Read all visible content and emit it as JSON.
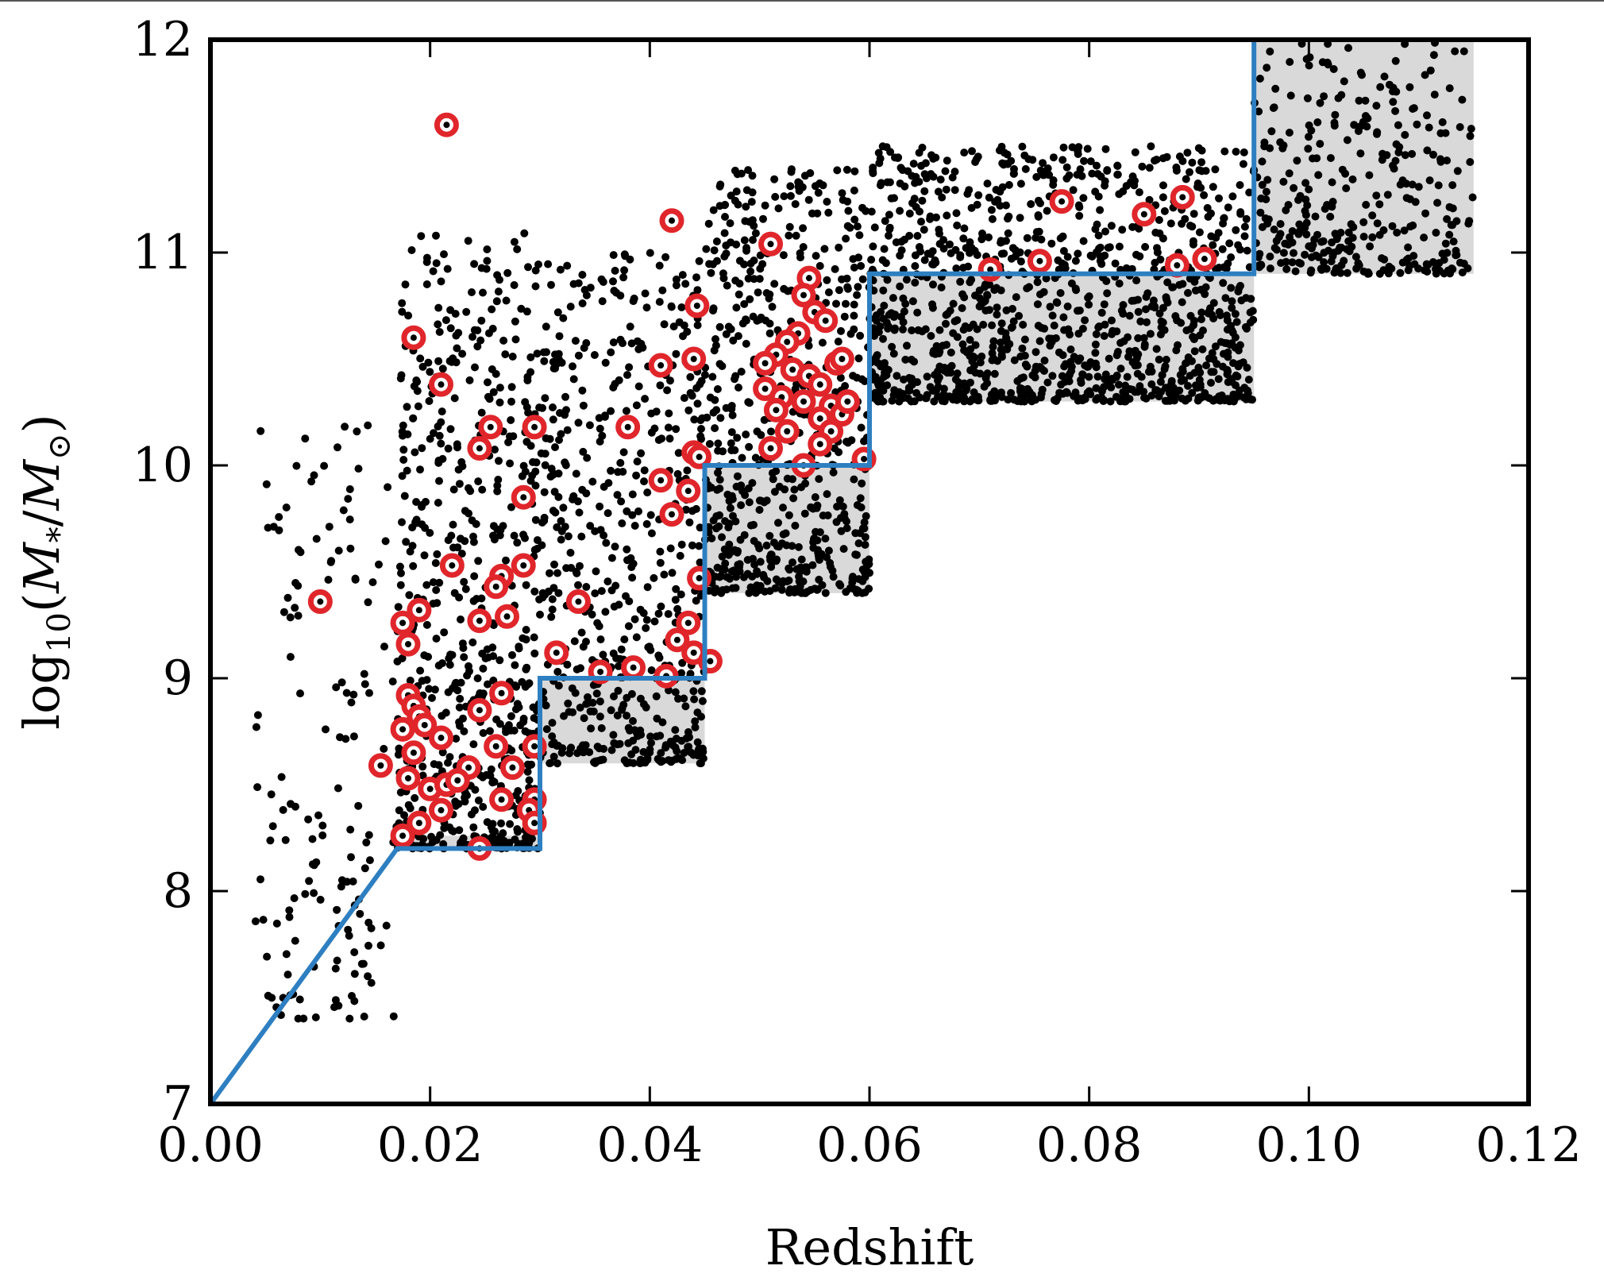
{
  "chart_data": {
    "type": "scatter",
    "title": "",
    "xlabel": "Redshift",
    "ylabel": "log10(M*/M⊙)",
    "xlim": [
      0.0,
      0.12
    ],
    "ylim": [
      7,
      12
    ],
    "grid": false,
    "x_ticks": [
      "0.00",
      "0.02",
      "0.04",
      "0.06",
      "0.08",
      "0.10",
      "0.12"
    ],
    "y_ticks": [
      "7",
      "8",
      "9",
      "10",
      "11",
      "12"
    ],
    "colors": {
      "points": "#000000",
      "highlight": "#e0262b",
      "limit_line": "#2e7fc1",
      "shaded_bins": "#d9d9d9"
    },
    "shaded_bins": [
      {
        "z": [
          0.017,
          0.03
        ],
        "m": [
          8.2,
          8.26
        ]
      },
      {
        "z": [
          0.03,
          0.045
        ],
        "m": [
          8.6,
          9.0
        ]
      },
      {
        "z": [
          0.045,
          0.06
        ],
        "m": [
          9.4,
          10.0
        ]
      },
      {
        "z": [
          0.06,
          0.095
        ],
        "m": [
          10.3,
          10.9
        ]
      },
      {
        "z": [
          0.095,
          0.115
        ],
        "m": [
          10.9,
          12.0
        ]
      }
    ],
    "limit_line": [
      [
        0.0,
        7.0
      ],
      [
        0.017,
        8.2
      ],
      [
        0.03,
        8.2
      ],
      [
        0.03,
        9.0
      ],
      [
        0.045,
        9.0
      ],
      [
        0.045,
        10.0
      ],
      [
        0.06,
        10.0
      ],
      [
        0.06,
        10.9
      ],
      [
        0.095,
        10.9
      ],
      [
        0.095,
        12.0
      ]
    ],
    "point_clouds": [
      {
        "z": [
          0.004,
          0.017
        ],
        "m": [
          7.4,
          10.2
        ],
        "n": 150
      },
      {
        "z": [
          0.017,
          0.03
        ],
        "m": [
          8.2,
          11.1
        ],
        "n": 650
      },
      {
        "z": [
          0.03,
          0.045
        ],
        "m": [
          8.6,
          11.0
        ],
        "n": 560
      },
      {
        "z": [
          0.045,
          0.06
        ],
        "m": [
          9.4,
          11.4
        ],
        "n": 620
      },
      {
        "z": [
          0.06,
          0.095
        ],
        "m": [
          10.3,
          11.5
        ],
        "n": 1150
      },
      {
        "z": [
          0.095,
          0.115
        ],
        "m": [
          10.9,
          12.0
        ],
        "n": 330
      }
    ],
    "highlighted_points": [
      [
        0.0215,
        11.6
      ],
      [
        0.0185,
        10.6
      ],
      [
        0.021,
        10.38
      ],
      [
        0.0255,
        10.18
      ],
      [
        0.0245,
        10.08
      ],
      [
        0.0295,
        10.18
      ],
      [
        0.0285,
        9.85
      ],
      [
        0.022,
        9.53
      ],
      [
        0.0285,
        9.53
      ],
      [
        0.0265,
        9.48
      ],
      [
        0.026,
        9.43
      ],
      [
        0.0245,
        9.27
      ],
      [
        0.027,
        9.29
      ],
      [
        0.0175,
        9.26
      ],
      [
        0.019,
        9.32
      ],
      [
        0.018,
        9.16
      ],
      [
        0.01,
        9.36
      ],
      [
        0.0265,
        8.93
      ],
      [
        0.0245,
        8.85
      ],
      [
        0.018,
        8.92
      ],
      [
        0.0185,
        8.87
      ],
      [
        0.019,
        8.82
      ],
      [
        0.0195,
        8.78
      ],
      [
        0.0175,
        8.76
      ],
      [
        0.021,
        8.72
      ],
      [
        0.0185,
        8.65
      ],
      [
        0.0295,
        8.68
      ],
      [
        0.026,
        8.68
      ],
      [
        0.0275,
        8.58
      ],
      [
        0.0235,
        8.58
      ],
      [
        0.0155,
        8.59
      ],
      [
        0.018,
        8.53
      ],
      [
        0.02,
        8.48
      ],
      [
        0.0215,
        8.5
      ],
      [
        0.0225,
        8.52
      ],
      [
        0.0265,
        8.43
      ],
      [
        0.0295,
        8.43
      ],
      [
        0.029,
        8.38
      ],
      [
        0.021,
        8.38
      ],
      [
        0.0295,
        8.32
      ],
      [
        0.019,
        8.32
      ],
      [
        0.0175,
        8.26
      ],
      [
        0.0245,
        8.2
      ],
      [
        0.0335,
        9.36
      ],
      [
        0.0315,
        9.12
      ],
      [
        0.0355,
        9.03
      ],
      [
        0.0385,
        9.05
      ],
      [
        0.0415,
        9.01
      ],
      [
        0.0425,
        9.18
      ],
      [
        0.0435,
        9.26
      ],
      [
        0.044,
        9.12
      ],
      [
        0.0455,
        9.08
      ],
      [
        0.0445,
        9.47
      ],
      [
        0.0435,
        9.88
      ],
      [
        0.042,
        9.77
      ],
      [
        0.041,
        9.93
      ],
      [
        0.044,
        10.06
      ],
      [
        0.0445,
        10.04
      ],
      [
        0.038,
        10.18
      ],
      [
        0.041,
        10.47
      ],
      [
        0.044,
        10.5
      ],
      [
        0.0443,
        10.75
      ],
      [
        0.042,
        11.15
      ],
      [
        0.051,
        11.04
      ],
      [
        0.0545,
        10.88
      ],
      [
        0.054,
        10.8
      ],
      [
        0.055,
        10.72
      ],
      [
        0.056,
        10.68
      ],
      [
        0.0535,
        10.62
      ],
      [
        0.0525,
        10.58
      ],
      [
        0.0515,
        10.52
      ],
      [
        0.0505,
        10.48
      ],
      [
        0.053,
        10.45
      ],
      [
        0.0545,
        10.42
      ],
      [
        0.057,
        10.48
      ],
      [
        0.0555,
        10.38
      ],
      [
        0.0505,
        10.36
      ],
      [
        0.052,
        10.32
      ],
      [
        0.054,
        10.3
      ],
      [
        0.0565,
        10.28
      ],
      [
        0.0515,
        10.26
      ],
      [
        0.0555,
        10.22
      ],
      [
        0.0575,
        10.24
      ],
      [
        0.058,
        10.3
      ],
      [
        0.0525,
        10.16
      ],
      [
        0.0565,
        10.16
      ],
      [
        0.051,
        10.08
      ],
      [
        0.0555,
        10.1
      ],
      [
        0.054,
        10.0
      ],
      [
        0.0595,
        10.03
      ],
      [
        0.0575,
        10.5
      ],
      [
        0.071,
        10.92
      ],
      [
        0.0755,
        10.96
      ],
      [
        0.0775,
        11.24
      ],
      [
        0.085,
        11.18
      ],
      [
        0.0885,
        11.26
      ],
      [
        0.088,
        10.94
      ],
      [
        0.0905,
        10.97
      ]
    ]
  }
}
